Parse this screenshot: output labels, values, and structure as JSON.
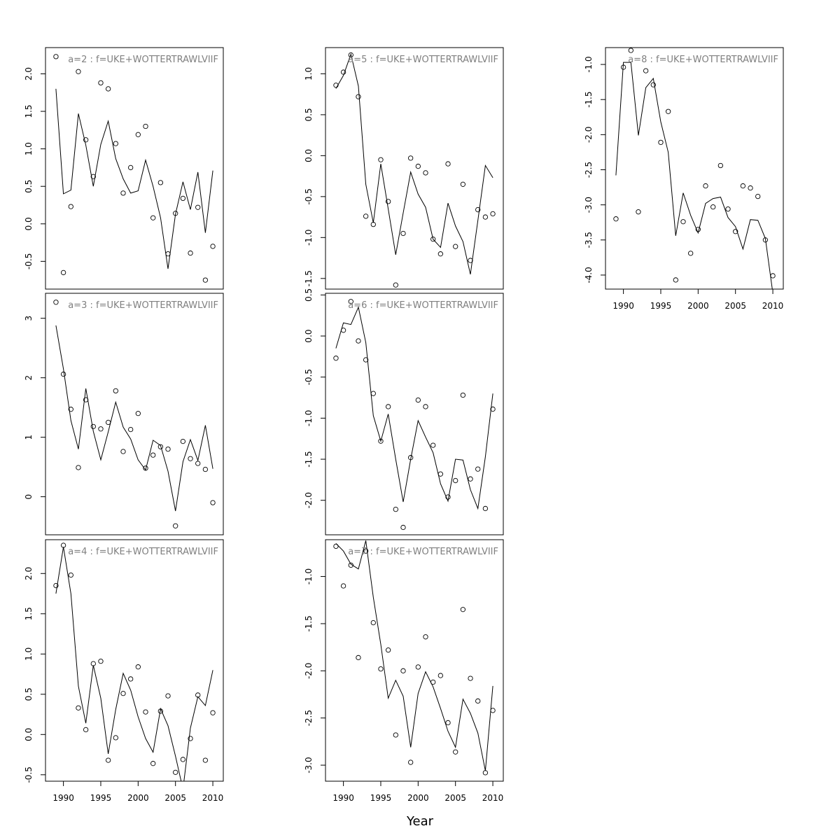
{
  "figure": {
    "xlabel": "Year"
  },
  "chart_data": [
    {
      "type": "line",
      "title": "a=2 : f=UKE+WOTTERTRAWLVIIF",
      "x": [
        1989,
        1990,
        1991,
        1992,
        1993,
        1994,
        1995,
        1996,
        1997,
        1998,
        1999,
        2000,
        2001,
        2002,
        2003,
        2004,
        2005,
        2006,
        2007,
        2008,
        2009,
        2010
      ],
      "series": [
        {
          "kind": "line",
          "values": [
            1.8,
            0.4,
            0.45,
            1.47,
            1.05,
            0.5,
            1.06,
            1.37,
            0.87,
            0.6,
            0.41,
            0.44,
            0.85,
            0.5,
            0.08,
            -0.6,
            0.13,
            0.56,
            0.19,
            0.69,
            -0.12,
            0.71
          ]
        },
        {
          "kind": "points",
          "values": [
            2.23,
            -0.65,
            0.23,
            2.03,
            1.12,
            0.63,
            1.88,
            1.8,
            1.07,
            0.41,
            0.75,
            1.19,
            1.3,
            0.08,
            0.55,
            -0.4,
            0.14,
            0.34,
            -0.39,
            0.22,
            -0.75,
            -0.3
          ]
        }
      ],
      "xlim": [
        1987.6,
        2011.4
      ],
      "ylim": [
        -0.87,
        2.35
      ],
      "yticks": [
        -0.5,
        0.0,
        0.5,
        1.0,
        1.5,
        2.0
      ],
      "ytick_labels": [
        "-0.5",
        "0.0",
        "0.5",
        "1.0",
        "1.5",
        "2.0"
      ],
      "show_xaxis": false
    },
    {
      "type": "line",
      "title": "a=3 : f=UKE+WOTTERTRAWLVIIF",
      "x": [
        1989,
        1990,
        1991,
        1992,
        1993,
        1994,
        1995,
        1996,
        1997,
        1998,
        1999,
        2000,
        2001,
        2002,
        2003,
        2004,
        2005,
        2006,
        2007,
        2008,
        2009,
        2010
      ],
      "series": [
        {
          "kind": "line",
          "values": [
            2.88,
            2.15,
            1.28,
            0.8,
            1.82,
            1.1,
            0.62,
            1.09,
            1.59,
            1.17,
            0.97,
            0.62,
            0.45,
            0.95,
            0.86,
            0.43,
            -0.24,
            0.59,
            0.96,
            0.61,
            1.2,
            0.47
          ]
        },
        {
          "kind": "points",
          "values": [
            3.27,
            2.06,
            1.47,
            0.49,
            1.63,
            1.18,
            1.14,
            1.25,
            1.78,
            0.76,
            1.13,
            1.4,
            0.48,
            0.7,
            0.84,
            0.8,
            -0.49,
            0.93,
            0.64,
            0.56,
            0.46,
            -0.1
          ]
        }
      ],
      "xlim": [
        1987.6,
        2011.4
      ],
      "ylim": [
        -0.64,
        3.42
      ],
      "yticks": [
        0,
        1,
        2,
        3
      ],
      "ytick_labels": [
        "0",
        "1",
        "2",
        "3"
      ],
      "show_xaxis": false
    },
    {
      "type": "line",
      "title": "a=4 : f=UKE+WOTTERTRAWLVIIF",
      "x": [
        1989,
        1990,
        1991,
        1992,
        1993,
        1994,
        1995,
        1996,
        1997,
        1998,
        1999,
        2000,
        2001,
        2002,
        2003,
        2004,
        2005,
        2006,
        2007,
        2008,
        2009,
        2010
      ],
      "series": [
        {
          "kind": "line",
          "values": [
            1.75,
            2.33,
            1.75,
            0.6,
            0.14,
            0.86,
            0.45,
            -0.24,
            0.31,
            0.76,
            0.55,
            0.22,
            -0.05,
            -0.22,
            0.32,
            0.11,
            -0.27,
            -0.68,
            0.08,
            0.47,
            0.36,
            0.8
          ]
        },
        {
          "kind": "points",
          "values": [
            1.85,
            2.35,
            1.98,
            0.33,
            0.06,
            0.88,
            0.91,
            -0.32,
            -0.04,
            0.51,
            0.69,
            0.84,
            0.28,
            -0.36,
            0.29,
            0.48,
            -0.47,
            -0.31,
            -0.05,
            0.49,
            -0.32,
            0.27
          ]
        }
      ],
      "xlim": [
        1987.6,
        2011.4
      ],
      "ylim": [
        -0.58,
        2.42
      ],
      "yticks": [
        -0.5,
        0.0,
        0.5,
        1.0,
        1.5,
        2.0
      ],
      "ytick_labels": [
        "-0.5",
        "0.0",
        "0.5",
        "1.0",
        "1.5",
        "2.0"
      ],
      "show_xaxis": true,
      "xticks": [
        1990,
        1995,
        2000,
        2005,
        2010
      ],
      "xtick_labels": [
        "1990",
        "1995",
        "2000",
        "2005",
        "2010"
      ]
    },
    {
      "type": "line",
      "title": "a=5 : f=UKE+WOTTERTRAWLVIIF",
      "x": [
        1989,
        1990,
        1991,
        1992,
        1993,
        1994,
        1995,
        1996,
        1997,
        1998,
        1999,
        2000,
        2001,
        2002,
        2003,
        2004,
        2005,
        2006,
        2007,
        2008,
        2009,
        2010
      ],
      "series": [
        {
          "kind": "line",
          "values": [
            0.82,
            0.98,
            1.24,
            0.85,
            -0.35,
            -0.82,
            -0.1,
            -0.65,
            -1.21,
            -0.7,
            -0.2,
            -0.47,
            -0.63,
            -1.02,
            -1.12,
            -0.58,
            -0.86,
            -1.05,
            -1.45,
            -0.79,
            -0.12,
            -0.27
          ]
        },
        {
          "kind": "points",
          "values": [
            0.86,
            1.02,
            1.23,
            0.72,
            -0.74,
            -0.84,
            -0.05,
            -0.56,
            -1.58,
            -0.95,
            -0.03,
            -0.13,
            -0.21,
            -1.02,
            -1.2,
            -0.1,
            -1.11,
            -0.35,
            -1.28,
            -0.66,
            -0.75,
            -0.71
          ]
        }
      ],
      "xlim": [
        1987.6,
        2011.4
      ],
      "ylim": [
        -1.63,
        1.32
      ],
      "yticks": [
        -1.5,
        -1.0,
        -0.5,
        0.0,
        0.5,
        1.0
      ],
      "ytick_labels": [
        "-1.5",
        "-1.0",
        "-0.5",
        "0.0",
        "0.5",
        "1.0"
      ],
      "show_xaxis": false
    },
    {
      "type": "line",
      "title": "a=6 : f=UKE+WOTTERTRAWLVIIF",
      "x": [
        1989,
        1990,
        1991,
        1992,
        1993,
        1994,
        1995,
        1996,
        1997,
        1998,
        1999,
        2000,
        2001,
        2002,
        2003,
        2004,
        2005,
        2006,
        2007,
        2008,
        2009,
        2010
      ],
      "series": [
        {
          "kind": "line",
          "values": [
            -0.15,
            0.16,
            0.14,
            0.35,
            -0.08,
            -0.97,
            -1.28,
            -0.95,
            -1.5,
            -2.02,
            -1.5,
            -1.03,
            -1.23,
            -1.42,
            -1.8,
            -2.01,
            -1.5,
            -1.51,
            -1.87,
            -2.1,
            -1.47,
            -0.7
          ]
        },
        {
          "kind": "points",
          "values": [
            -0.27,
            0.07,
            0.42,
            -0.06,
            -0.29,
            -0.7,
            -1.28,
            -0.86,
            -2.11,
            -2.33,
            -1.48,
            -0.78,
            -0.86,
            -1.33,
            -1.68,
            -1.96,
            -1.76,
            -0.72,
            -1.74,
            -1.62,
            -2.1,
            -0.89
          ]
        }
      ],
      "xlim": [
        1987.6,
        2011.4
      ],
      "ylim": [
        -2.42,
        0.52
      ],
      "yticks": [
        -2.0,
        -1.5,
        -1.0,
        -0.5,
        0.0,
        0.5
      ],
      "ytick_labels": [
        "-2.0",
        "-1.5",
        "-1.0",
        "-0.5",
        "0.0",
        "0.5"
      ],
      "show_xaxis": false
    },
    {
      "type": "line",
      "title": "a=7 : f=UKE+WOTTERTRAWLVIIF",
      "x": [
        1989,
        1990,
        1991,
        1992,
        1993,
        1994,
        1995,
        1996,
        1997,
        1998,
        1999,
        2000,
        2001,
        2002,
        2003,
        2004,
        2005,
        2006,
        2007,
        2008,
        2009,
        2010
      ],
      "series": [
        {
          "kind": "line",
          "values": [
            -0.65,
            -0.73,
            -0.87,
            -0.92,
            -0.62,
            -1.22,
            -1.72,
            -2.29,
            -2.1,
            -2.27,
            -2.81,
            -2.24,
            -2.01,
            -2.17,
            -2.4,
            -2.64,
            -2.81,
            -2.3,
            -2.45,
            -2.66,
            -3.06,
            -2.16
          ]
        },
        {
          "kind": "points",
          "values": [
            -0.68,
            -1.1,
            -0.88,
            -1.86,
            -0.73,
            -1.49,
            -1.98,
            -1.78,
            -2.68,
            -2.0,
            -2.97,
            -1.96,
            -1.64,
            -2.12,
            -2.05,
            -2.55,
            -2.86,
            -1.35,
            -2.08,
            -2.32,
            -3.08,
            -2.42
          ]
        }
      ],
      "xlim": [
        1987.6,
        2011.4
      ],
      "ylim": [
        -3.17,
        -0.61
      ],
      "yticks": [
        -3.0,
        -2.5,
        -2.0,
        -1.5,
        -1.0
      ],
      "ytick_labels": [
        "-3.0",
        "-2.5",
        "-2.0",
        "-1.5",
        "-1.0"
      ],
      "show_xaxis": true,
      "xticks": [
        1990,
        1995,
        2000,
        2005,
        2010
      ],
      "xtick_labels": [
        "1990",
        "1995",
        "2000",
        "2005",
        "2010"
      ]
    },
    {
      "type": "line",
      "title": "a=8 : f=UKE+WOTTERTRAWLVIIF",
      "x": [
        1989,
        1990,
        1991,
        1992,
        1993,
        1994,
        1995,
        1996,
        1997,
        1998,
        1999,
        2000,
        2001,
        2002,
        2003,
        2004,
        2005,
        2006,
        2007,
        2008,
        2009,
        2010
      ],
      "series": [
        {
          "kind": "line",
          "values": [
            -2.58,
            -0.97,
            -0.97,
            -2.01,
            -1.33,
            -1.2,
            -1.82,
            -2.25,
            -3.44,
            -2.83,
            -3.15,
            -3.4,
            -2.98,
            -2.91,
            -2.89,
            -3.18,
            -3.31,
            -3.63,
            -3.21,
            -3.22,
            -3.48,
            -4.26
          ]
        },
        {
          "kind": "points",
          "values": [
            -3.2,
            -1.04,
            -0.8,
            -3.1,
            -1.09,
            -1.29,
            -2.11,
            -1.67,
            -4.07,
            -3.24,
            -3.69,
            -3.35,
            -2.73,
            -3.03,
            -2.44,
            -3.06,
            -3.38,
            -2.73,
            -2.76,
            -2.88,
            -3.5,
            -4.01
          ]
        }
      ],
      "xlim": [
        1987.6,
        2011.4
      ],
      "ylim": [
        -4.2,
        -0.76
      ],
      "yticks": [
        -4.0,
        -3.5,
        -3.0,
        -2.5,
        -2.0,
        -1.5,
        -1.0
      ],
      "ytick_labels": [
        "-4.0",
        "-3.5",
        "-3.0",
        "-2.5",
        "-2.0",
        "-1.5",
        "-1.0"
      ],
      "show_xaxis": true,
      "xticks": [
        1990,
        1995,
        2000,
        2005,
        2010
      ],
      "xtick_labels": [
        "1990",
        "1995",
        "2000",
        "2005",
        "2010"
      ]
    }
  ]
}
